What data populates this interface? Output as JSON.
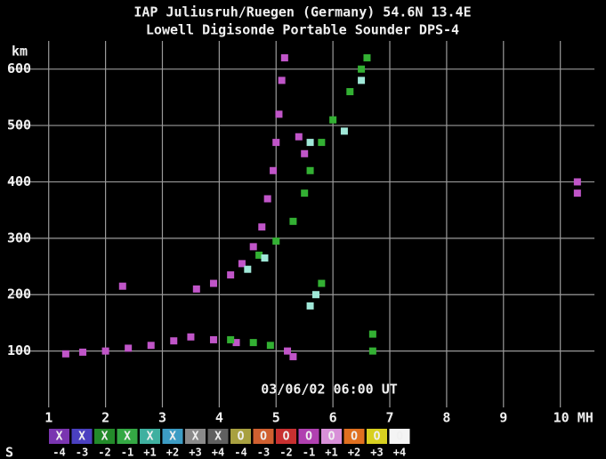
{
  "chart_data": {
    "type": "scatter",
    "title": "IAP Juliusruh/Ruegen (Germany) 54.6N 13.4E",
    "subtitle": "Lowell Digisonde Portable Sounder DPS-4",
    "y_label": "km",
    "annotation": "03/06/02 06:00 UT",
    "xlim": [
      0.3,
      10.6
    ],
    "ylim": [
      0,
      650
    ],
    "xticks": [
      1,
      2,
      3,
      4,
      5,
      6,
      7,
      8,
      9,
      {
        "value": 10,
        "label": "10 MH"
      }
    ],
    "yticks": [
      100,
      200,
      300,
      400,
      500,
      600
    ],
    "grid": true,
    "series": [
      {
        "color": "#c055c8",
        "x": [
          1.3,
          1.6,
          2.0,
          2.4,
          2.8,
          3.2,
          3.5,
          3.9,
          4.3,
          5.2,
          5.3,
          3.6,
          3.9,
          4.2,
          4.4,
          4.6,
          4.75,
          4.85,
          4.95,
          5.0,
          5.05,
          5.1,
          5.15,
          5.5,
          5.4,
          10.3,
          10.3,
          2.3
        ],
        "y": [
          95,
          98,
          100,
          105,
          110,
          118,
          125,
          120,
          115,
          100,
          90,
          210,
          220,
          235,
          255,
          285,
          320,
          370,
          420,
          470,
          520,
          580,
          620,
          450,
          480,
          380,
          400,
          215
        ]
      },
      {
        "color": "#33b033",
        "x": [
          4.2,
          4.6,
          4.9,
          4.7,
          5.0,
          5.3,
          5.5,
          5.6,
          5.8,
          6.0,
          6.3,
          6.5,
          6.6,
          6.7,
          6.7,
          5.8
        ],
        "y": [
          120,
          115,
          110,
          270,
          295,
          330,
          380,
          420,
          470,
          510,
          560,
          600,
          620,
          130,
          100,
          220
        ]
      },
      {
        "color": "#a0e8d8",
        "x": [
          4.5,
          4.8,
          5.6,
          5.7,
          6.2,
          6.5,
          5.6
        ],
        "y": [
          245,
          265,
          180,
          200,
          490,
          580,
          470
        ]
      }
    ],
    "legend_title": "S",
    "legend": [
      {
        "symbol": "X",
        "label": "-4",
        "color": "#7a35b0"
      },
      {
        "symbol": "X",
        "label": "-3",
        "color": "#4a40c0"
      },
      {
        "symbol": "X",
        "label": "-2",
        "color": "#238a2a"
      },
      {
        "symbol": "X",
        "label": "-1",
        "color": "#34a844"
      },
      {
        "symbol": "X",
        "label": "+1",
        "color": "#3fb0a0"
      },
      {
        "symbol": "X",
        "label": "+2",
        "color": "#3c9cc4"
      },
      {
        "symbol": "X",
        "label": "+3",
        "color": "#8a8a8a"
      },
      {
        "symbol": "X",
        "label": "+4",
        "color": "#606060"
      },
      {
        "symbol": "O",
        "label": "-4",
        "color": "#a8a040"
      },
      {
        "symbol": "O",
        "label": "-3",
        "color": "#d06030"
      },
      {
        "symbol": "O",
        "label": "-2",
        "color": "#c83030"
      },
      {
        "symbol": "O",
        "label": "-1",
        "color": "#b040b0"
      },
      {
        "symbol": "O",
        "label": "+1",
        "color": "#d890d8"
      },
      {
        "symbol": "O",
        "label": "+2",
        "color": "#e07020"
      },
      {
        "symbol": "O",
        "label": "+3",
        "color": "#d8d020"
      },
      {
        "symbol": "O",
        "label": "+4",
        "color": "#f4f4f4"
      }
    ]
  }
}
